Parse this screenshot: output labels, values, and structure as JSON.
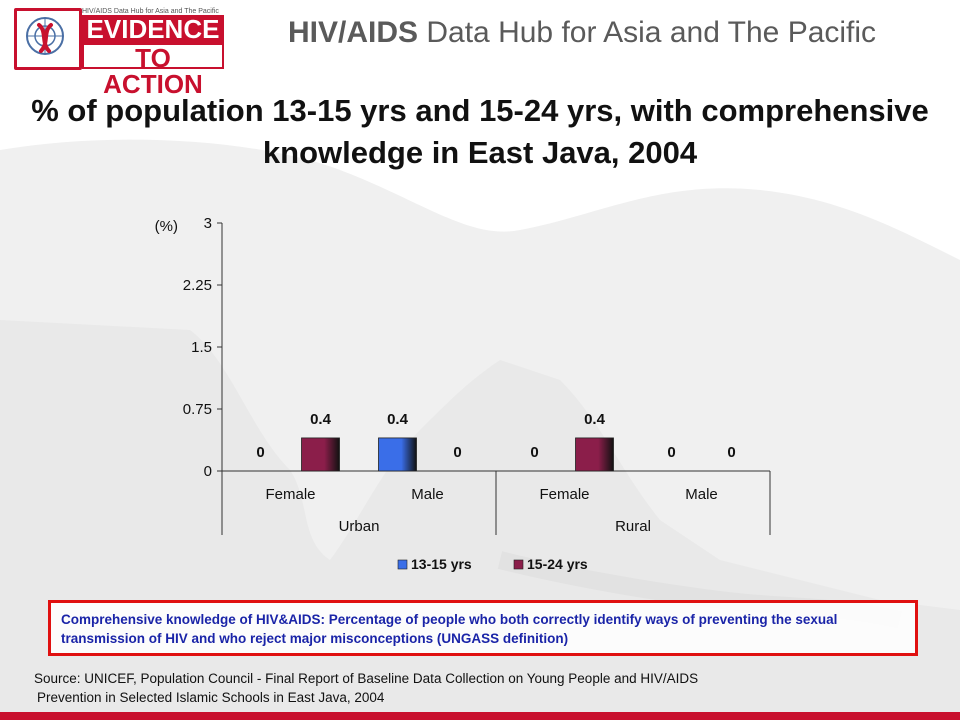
{
  "header": {
    "logo_small": "HIV/AIDS Data Hub for Asia and The Pacific",
    "logo_line1": "EVIDENCE",
    "logo_line2": "TO ACTION",
    "hub_title_bold": "HIV/AIDS",
    "hub_title_rest": " Data Hub for Asia and The Pacific"
  },
  "chart_data": {
    "type": "bar",
    "title": "% of population 13-15 yrs and 15-24 yrs, with comprehensive knowledge in East Java, 2004",
    "ylabel": "(%)",
    "ylim": [
      0,
      3
    ],
    "yticks": [
      "3",
      "2.25",
      "1.5",
      "0.75",
      "0"
    ],
    "categories": [
      "Female",
      "Male",
      "Female",
      "Male"
    ],
    "groups": [
      {
        "label": "Urban",
        "categories": [
          "Female",
          "Male"
        ]
      },
      {
        "label": "Rural",
        "categories": [
          "Female",
          "Male"
        ]
      }
    ],
    "series": [
      {
        "name": "13-15 yrs",
        "values": [
          0,
          0.4,
          0,
          0
        ],
        "color": "#3a6ee8"
      },
      {
        "name": "15-24 yrs",
        "values": [
          0.4,
          0,
          0.4,
          0
        ],
        "color": "#8b1e4a"
      }
    ],
    "data_labels": [
      [
        "0",
        "0.4",
        "0",
        "0"
      ],
      [
        "0.4",
        "0",
        "0.4",
        "0"
      ]
    ],
    "legend_position": "bottom",
    "grid": false
  },
  "definition": "Comprehensive knowledge of HIV&AIDS: Percentage of people who both correctly identify ways of preventing the sexual transmission of HIV and who reject major misconceptions (UNGASS definition)",
  "source": {
    "line1": "Source: UNICEF, Population Council - Final Report of Baseline Data Collection on Young People and HIV/AIDS",
    "line2": "Prevention in Selected Islamic Schools in East Java, 2004"
  },
  "colors": {
    "brand_red": "#c8102e",
    "definition_text": "#1a24a8",
    "definition_border": "#e01010"
  }
}
